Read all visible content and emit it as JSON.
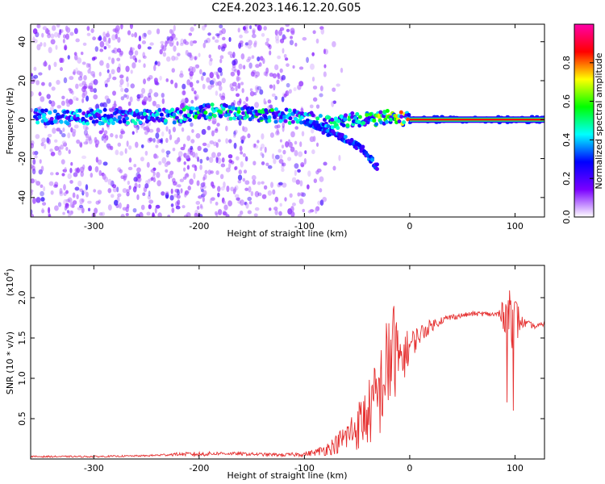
{
  "title": "C2E4.2023.146.12.20.G05",
  "chart_data": [
    {
      "type": "heatmap",
      "name": "spectrogram",
      "xlabel": "Height of straight line (km)",
      "ylabel": "Frequency (Hz)",
      "xlim": [
        -360,
        128
      ],
      "ylim": [
        -50,
        49
      ],
      "xticks": [
        -300,
        -200,
        -100,
        0,
        100
      ],
      "yticks": [
        -40,
        -20,
        0,
        20,
        40
      ],
      "xtick_labels": [
        "-300",
        "-200",
        "-100",
        "0",
        "100"
      ],
      "ytick_labels": [
        "-40",
        "-20",
        "0",
        "20",
        "40"
      ],
      "colorbar": {
        "label": "Normalized spectral amplitude",
        "range": [
          0,
          1
        ],
        "ticks": [
          0.0,
          0.2,
          0.4,
          0.6,
          0.8
        ],
        "tick_labels": [
          "0.0",
          "0.2",
          "0.4",
          "0.6",
          "0.8"
        ],
        "colormap": [
          "#ffffff",
          "#7a00ff",
          "#0000ff",
          "#00ffff",
          "#00ff00",
          "#ffff00",
          "#ff0000",
          "#ff00aa"
        ]
      },
      "signal_track": [
        {
          "x": -300,
          "y": 1.5,
          "amp": 0.3
        },
        {
          "x": -250,
          "y": 1.5,
          "amp": 0.35
        },
        {
          "x": -220,
          "y": 2.0,
          "amp": 0.4
        },
        {
          "x": -200,
          "y": 4.0,
          "amp": 0.45
        },
        {
          "x": -180,
          "y": 4.5,
          "amp": 0.4
        },
        {
          "x": -150,
          "y": 3.0,
          "amp": 0.45
        },
        {
          "x": -120,
          "y": 2.0,
          "amp": 0.45
        },
        {
          "x": -100,
          "y": 1.0,
          "amp": 0.4
        },
        {
          "x": -80,
          "y": -2.0,
          "amp": 0.4
        },
        {
          "x": -60,
          "y": 0.0,
          "amp": 0.45
        },
        {
          "x": -40,
          "y": 0.0,
          "amp": 0.5
        },
        {
          "x": -20,
          "y": 1.5,
          "amp": 0.6
        },
        {
          "x": 0,
          "y": 0.0,
          "amp": 0.85
        },
        {
          "x": 50,
          "y": 0.0,
          "amp": 0.9
        },
        {
          "x": 128,
          "y": 0.0,
          "amp": 0.9
        }
      ],
      "secondary_track": [
        {
          "x": -100,
          "y": -1.0
        },
        {
          "x": -80,
          "y": -6.0
        },
        {
          "x": -60,
          "y": -10.0
        },
        {
          "x": -45,
          "y": -15.0
        },
        {
          "x": -30,
          "y": -25.0
        }
      ]
    },
    {
      "type": "line",
      "name": "snr",
      "xlabel": "Height of straight line (km)",
      "ylabel": "SNR (10 * v/v)",
      "yscale_label": "(x10",
      "yscale_exponent": "4",
      "yscale_close": ")",
      "xlim": [
        -360,
        128
      ],
      "ylim": [
        0,
        2.4
      ],
      "xticks": [
        -300,
        -200,
        -100,
        0,
        100
      ],
      "yticks": [
        0.5,
        1.0,
        1.5,
        2.0
      ],
      "xtick_labels": [
        "-300",
        "-200",
        "-100",
        "0",
        "100"
      ],
      "ytick_labels": [
        "0.5",
        "1.0",
        "1.5",
        "2.0"
      ],
      "color": "#e53030",
      "series": [
        {
          "name": "SNR",
          "x": [
            -360,
            -300,
            -250,
            -220,
            -200,
            -180,
            -150,
            -120,
            -100,
            -90,
            -80,
            -70,
            -60,
            -50,
            -40,
            -30,
            -20,
            -15,
            -10,
            -5,
            0,
            10,
            20,
            30,
            40,
            50,
            60,
            70,
            80,
            90,
            95,
            100,
            105,
            110,
            120,
            128
          ],
          "y": [
            0.03,
            0.03,
            0.04,
            0.06,
            0.06,
            0.07,
            0.06,
            0.05,
            0.06,
            0.08,
            0.12,
            0.18,
            0.28,
            0.4,
            0.55,
            0.75,
            1.2,
            1.35,
            1.2,
            1.3,
            1.4,
            1.55,
            1.65,
            1.72,
            1.76,
            1.78,
            1.8,
            1.8,
            1.79,
            1.78,
            1.75,
            1.72,
            1.7,
            1.68,
            1.64,
            1.68
          ],
          "noise": [
            0.01,
            0.01,
            0.01,
            0.02,
            0.03,
            0.02,
            0.02,
            0.02,
            0.03,
            0.04,
            0.08,
            0.12,
            0.2,
            0.3,
            0.4,
            0.55,
            0.65,
            0.6,
            0.4,
            0.3,
            0.2,
            0.12,
            0.08,
            0.05,
            0.04,
            0.03,
            0.03,
            0.03,
            0.03,
            0.2,
            0.35,
            0.4,
            0.1,
            0.05,
            0.03,
            0.03
          ]
        }
      ]
    }
  ]
}
